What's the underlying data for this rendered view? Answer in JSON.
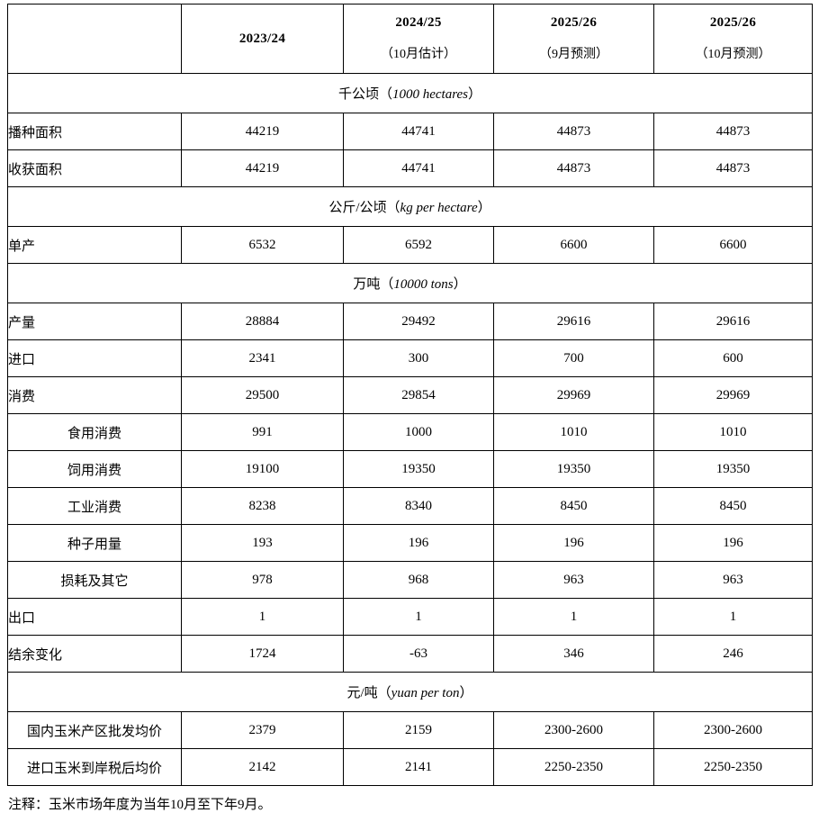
{
  "punct": {
    "open": "（",
    "close": "）"
  },
  "header": {
    "columns": [
      {
        "year": "",
        "sub": ""
      },
      {
        "year": "2023/24",
        "sub": ""
      },
      {
        "year": "2024/25",
        "sub": "（10月估计）"
      },
      {
        "year": "2025/26",
        "sub": "（9月预测）"
      },
      {
        "year": "2025/26",
        "sub": "（10月预测）"
      }
    ]
  },
  "sections": [
    {
      "unit_cn": "千公顷",
      "unit_en": "1000 hectares",
      "rows": [
        {
          "label": "播种面积",
          "align": "left",
          "values": [
            "44219",
            "44741",
            "44873",
            "44873"
          ]
        },
        {
          "label": "收获面积",
          "align": "left",
          "values": [
            "44219",
            "44741",
            "44873",
            "44873"
          ]
        }
      ]
    },
    {
      "unit_cn": "公斤/公顷",
      "unit_en": "kg per hectare",
      "rows": [
        {
          "label": "单产",
          "align": "left",
          "values": [
            "6532",
            "6592",
            "6600",
            "6600"
          ]
        }
      ]
    },
    {
      "unit_cn": "万吨",
      "unit_en": "10000 tons",
      "rows": [
        {
          "label": "产量",
          "align": "left",
          "values": [
            "28884",
            "29492",
            "29616",
            "29616"
          ]
        },
        {
          "label": "进口",
          "align": "left",
          "values": [
            "2341",
            "300",
            "700",
            "600"
          ]
        },
        {
          "label": "消费",
          "align": "left",
          "values": [
            "29500",
            "29854",
            "29969",
            "29969"
          ]
        },
        {
          "label": "食用消费",
          "align": "center",
          "values": [
            "991",
            "1000",
            "1010",
            "1010"
          ]
        },
        {
          "label": "饲用消费",
          "align": "center",
          "values": [
            "19100",
            "19350",
            "19350",
            "19350"
          ]
        },
        {
          "label": "工业消费",
          "align": "center",
          "values": [
            "8238",
            "8340",
            "8450",
            "8450"
          ]
        },
        {
          "label": "种子用量",
          "align": "center",
          "values": [
            "193",
            "196",
            "196",
            "196"
          ]
        },
        {
          "label": "损耗及其它",
          "align": "center",
          "values": [
            "978",
            "968",
            "963",
            "963"
          ]
        },
        {
          "label": "出口",
          "align": "left",
          "values": [
            "1",
            "1",
            "1",
            "1"
          ]
        },
        {
          "label": "结余变化",
          "align": "left",
          "values": [
            "1724",
            "-63",
            "346",
            "246"
          ]
        }
      ]
    },
    {
      "unit_cn": "元/吨",
      "unit_en": "yuan per ton",
      "rows": [
        {
          "label": "国内玉米产区批发均价",
          "align": "center",
          "values": [
            "2379",
            "2159",
            "2300-2600",
            "2300-2600"
          ]
        },
        {
          "label": "进口玉米到岸税后均价",
          "align": "center",
          "values": [
            "2142",
            "2141",
            "2250-2350",
            "2250-2350"
          ]
        }
      ]
    }
  ],
  "note": "注释：玉米市场年度为当年10月至下年9月。"
}
